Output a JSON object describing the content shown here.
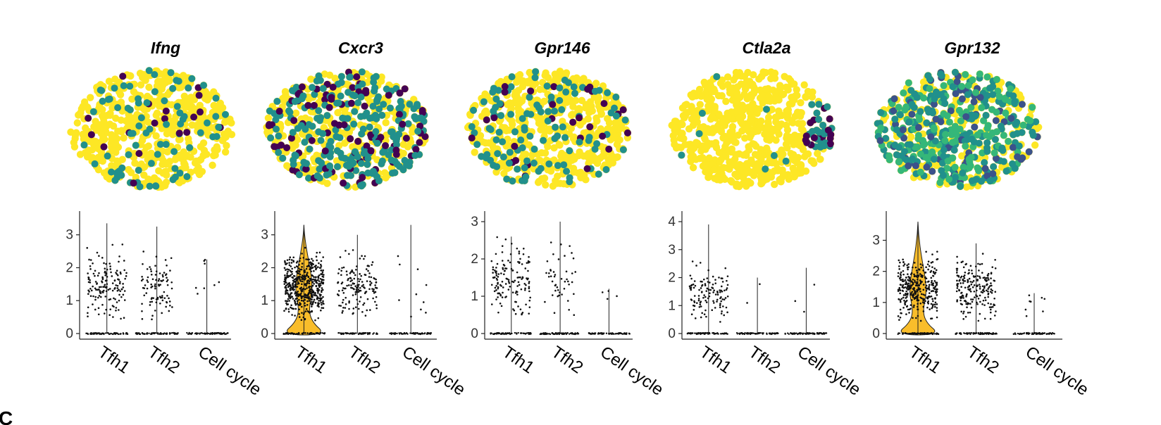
{
  "figure": {
    "page_letter": "C",
    "colors": {
      "umap_high": "#440154",
      "umap_mid": "#21908C",
      "umap_mid2": "#35B779",
      "umap_low": "#FDE725",
      "violin_fill": "#F9BD2B",
      "point": "#111111",
      "axis": "#222222"
    }
  },
  "chart_data": [
    {
      "type": "scatter",
      "title": "Ifng",
      "description_level": "UMAP feature plot",
      "expression_profile": "sparse",
      "category_levels": [
        "low",
        "mid",
        "high"
      ]
    },
    {
      "type": "scatter",
      "title": "Cxcr3",
      "expression_profile": "dense"
    },
    {
      "type": "scatter",
      "title": "Gpr146",
      "expression_profile": "moderate"
    },
    {
      "type": "scatter",
      "title": "Ctla2a",
      "expression_profile": "localized-right"
    },
    {
      "type": "scatter",
      "title": "Gpr132",
      "expression_profile": "dense-mixed"
    },
    {
      "type": "violin",
      "gene": "Ifng",
      "categories": [
        "Tfh1",
        "Tfh2",
        "Cell cycle"
      ],
      "ylim": [
        0,
        3.4
      ],
      "yticks": [
        "0",
        "1",
        "2",
        "3"
      ],
      "max_values": [
        3.35,
        3.25,
        2.25
      ],
      "expressing_points": [
        150,
        90,
        8
      ],
      "violin_shown": [
        false,
        false,
        false
      ]
    },
    {
      "type": "violin",
      "gene": "Cxcr3",
      "categories": [
        "Tfh1",
        "Tfh2",
        "Cell cycle"
      ],
      "ylim": [
        0,
        3.4
      ],
      "yticks": [
        "0",
        "1",
        "2",
        "3"
      ],
      "max_values": [
        3.3,
        3.0,
        3.3
      ],
      "expressing_points": [
        500,
        150,
        10
      ],
      "violin_shown": [
        true,
        false,
        false
      ]
    },
    {
      "type": "violin",
      "gene": "Gpr146",
      "categories": [
        "Tfh1",
        "Tfh2",
        "Cell cycle"
      ],
      "ylim": [
        0,
        3.0
      ],
      "yticks": [
        "0",
        "1",
        "2",
        "3"
      ],
      "max_values": [
        2.6,
        3.0,
        1.2
      ],
      "expressing_points": [
        140,
        45,
        4
      ],
      "violin_shown": [
        false,
        false,
        false
      ]
    },
    {
      "type": "violin",
      "gene": "Ctla2a",
      "categories": [
        "Tfh1",
        "Tfh2",
        "Cell cycle"
      ],
      "ylim": [
        0,
        4.0
      ],
      "yticks": [
        "0",
        "1",
        "2",
        "3",
        "4"
      ],
      "max_values": [
        3.9,
        2.0,
        2.35
      ],
      "expressing_points": [
        120,
        2,
        3
      ],
      "violin_shown": [
        false,
        false,
        false
      ]
    },
    {
      "type": "violin",
      "gene": "Gpr132",
      "categories": [
        "Tfh1",
        "Tfh2",
        "Cell cycle"
      ],
      "ylim": [
        0,
        3.6
      ],
      "yticks": [
        "0",
        "1",
        "2",
        "3"
      ],
      "max_values": [
        3.6,
        2.9,
        1.3
      ],
      "expressing_points": [
        330,
        200,
        8
      ],
      "violin_shown": [
        true,
        false,
        false
      ]
    }
  ]
}
